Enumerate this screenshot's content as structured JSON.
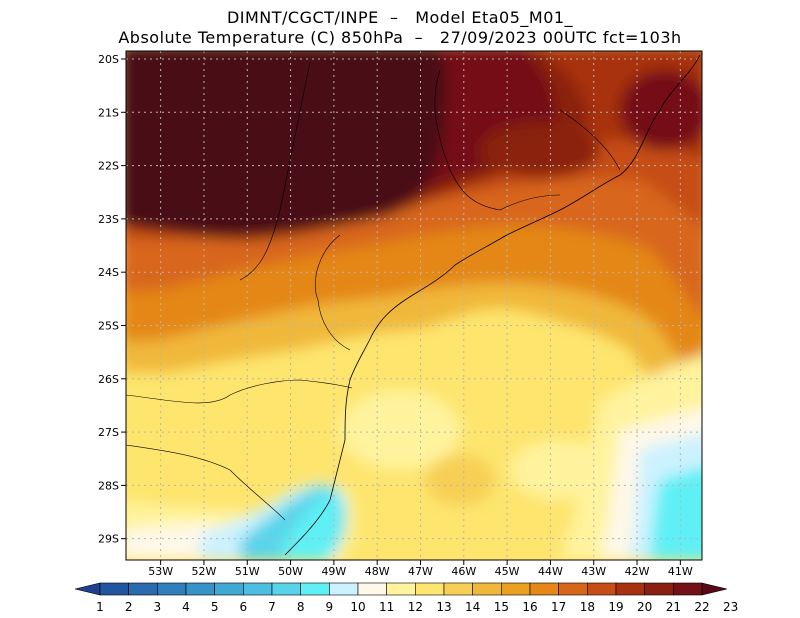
{
  "header": {
    "line1": "DIMNT/CGCT/INPE  –   Model Eta05_M01_",
    "line2": "Absolute Temperature (C) 850hPa  –   27/09/2023 00UTC fct=103h"
  },
  "map": {
    "lat_labels": [
      "20S",
      "21S",
      "22S",
      "23S",
      "24S",
      "25S",
      "26S",
      "27S",
      "28S",
      "29S"
    ],
    "lon_labels": [
      "53W",
      "52W",
      "51W",
      "50W",
      "49W",
      "48W",
      "47W",
      "46W",
      "45W",
      "44W",
      "43W",
      "42W",
      "41W"
    ],
    "lat_range": [
      -29.4,
      -19.85
    ],
    "lon_range": [
      -53.8,
      -40.5
    ]
  },
  "colorbar": {
    "labels": [
      "1",
      "2",
      "3",
      "4",
      "5",
      "6",
      "7",
      "8",
      "9",
      "10",
      "11",
      "12",
      "13",
      "14",
      "15",
      "16",
      "17",
      "18",
      "19",
      "20",
      "21",
      "22",
      "23"
    ],
    "colors": [
      "#1f3f8f",
      "#22559f",
      "#2a6aae",
      "#2f7fbc",
      "#3593c8",
      "#3fa9d4",
      "#4cbee0",
      "#58d4ea",
      "#5ef0f5",
      "#ccf2ff",
      "#fff8e8",
      "#fff39e",
      "#fde56e",
      "#f7cf55",
      "#f0b83a",
      "#eba120",
      "#e48717",
      "#d8661a",
      "#c64e16",
      "#a8320f",
      "#8a2010",
      "#741018",
      "#5a0818"
    ]
  }
}
